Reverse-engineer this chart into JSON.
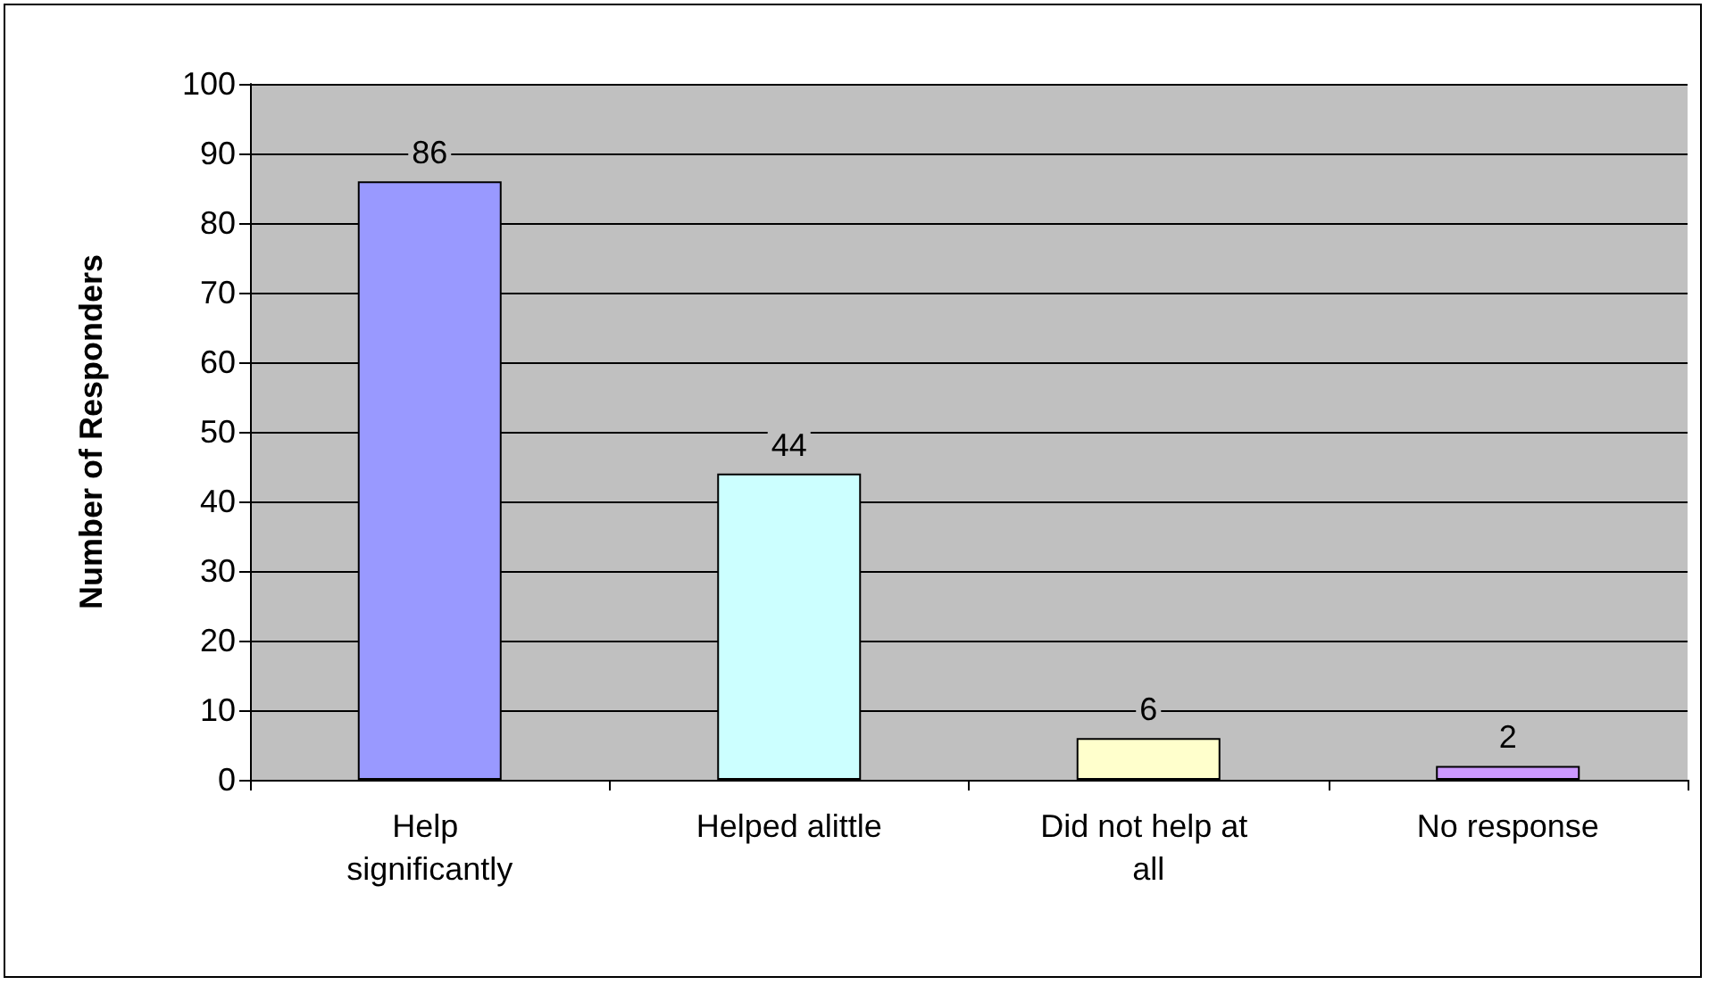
{
  "chart_data": {
    "type": "bar",
    "ylabel": "Number of Responders",
    "categories": [
      "Help significantly",
      "Helped alittle",
      "Did not help at all",
      "No response"
    ],
    "values": [
      86,
      44,
      6,
      2
    ],
    "colors": [
      "#9999ff",
      "#ccffff",
      "#ffffcc",
      "#cc99ff"
    ],
    "ylim": [
      0,
      100
    ],
    "yticks": [
      0,
      10,
      20,
      30,
      40,
      50,
      60,
      70,
      80,
      90,
      100
    ],
    "grid": "y",
    "data_labels": true
  }
}
